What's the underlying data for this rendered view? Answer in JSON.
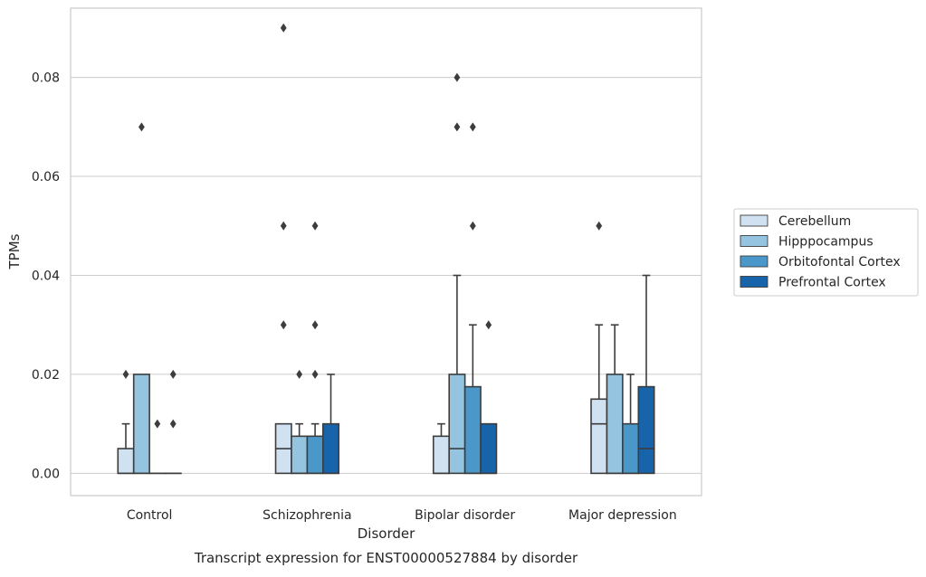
{
  "chart_data": {
    "type": "box",
    "title": "",
    "caption": "Transcript expression for ENST00000527884 by disorder",
    "xlabel": "Disorder",
    "ylabel": "TPMs",
    "ylim": [
      -0.0045,
      0.094
    ],
    "yticks": [
      0.0,
      0.02,
      0.04,
      0.06,
      0.08
    ],
    "ytick_labels": [
      "0.00",
      "0.02",
      "0.04",
      "0.06",
      "0.08"
    ],
    "grid": "horizontal",
    "legend_position": "right",
    "categories": [
      "Control",
      "Schizophrenia",
      "Bipolar disorder",
      "Major depression"
    ],
    "series": [
      {
        "name": "Cerebellum",
        "color": "#d0e1f2",
        "boxes": [
          {
            "q1": 0.0,
            "median": 0.0,
            "q3": 0.005,
            "whisker_low": 0.0,
            "whisker_high": 0.01,
            "outliers": [
              0.02
            ]
          },
          {
            "q1": 0.0,
            "median": 0.005,
            "q3": 0.01,
            "whisker_low": 0.0,
            "whisker_high": 0.01,
            "outliers": [
              0.03,
              0.05,
              0.09
            ]
          },
          {
            "q1": 0.0,
            "median": 0.0,
            "q3": 0.0075,
            "whisker_low": 0.0,
            "whisker_high": 0.01,
            "outliers": []
          },
          {
            "q1": 0.0,
            "median": 0.01,
            "q3": 0.015,
            "whisker_low": 0.0,
            "whisker_high": 0.03,
            "outliers": [
              0.05
            ]
          }
        ]
      },
      {
        "name": "Hipppocampus",
        "color": "#94c4df",
        "boxes": [
          {
            "q1": 0.0,
            "median": 0.0,
            "q3": 0.02,
            "whisker_low": 0.0,
            "whisker_high": 0.02,
            "outliers": [
              0.07
            ]
          },
          {
            "q1": 0.0,
            "median": 0.0,
            "q3": 0.0075,
            "whisker_low": 0.0,
            "whisker_high": 0.01,
            "outliers": [
              0.02
            ]
          },
          {
            "q1": 0.0,
            "median": 0.005,
            "q3": 0.02,
            "whisker_low": 0.0,
            "whisker_high": 0.04,
            "outliers": [
              0.07,
              0.08
            ]
          },
          {
            "q1": 0.0,
            "median": 0.0,
            "q3": 0.02,
            "whisker_low": 0.0,
            "whisker_high": 0.03,
            "outliers": []
          }
        ]
      },
      {
        "name": "Orbitofontal Cortex",
        "color": "#4a98c9",
        "boxes": [
          {
            "q1": 0.0,
            "median": 0.0,
            "q3": 0.0,
            "whisker_low": 0.0,
            "whisker_high": 0.0,
            "outliers": [
              0.01
            ]
          },
          {
            "q1": 0.0,
            "median": 0.0,
            "q3": 0.0075,
            "whisker_low": 0.0,
            "whisker_high": 0.01,
            "outliers": [
              0.02,
              0.03,
              0.05
            ]
          },
          {
            "q1": 0.0,
            "median": 0.0,
            "q3": 0.0175,
            "whisker_low": 0.0,
            "whisker_high": 0.03,
            "outliers": [
              0.05,
              0.07
            ]
          },
          {
            "q1": 0.0,
            "median": 0.0,
            "q3": 0.01,
            "whisker_low": 0.0,
            "whisker_high": 0.02,
            "outliers": []
          }
        ]
      },
      {
        "name": "Prefrontal Cortex",
        "color": "#1764ab",
        "boxes": [
          {
            "q1": 0.0,
            "median": 0.0,
            "q3": 0.0,
            "whisker_low": 0.0,
            "whisker_high": 0.0,
            "outliers": [
              0.01,
              0.02
            ]
          },
          {
            "q1": 0.0,
            "median": 0.0,
            "q3": 0.01,
            "whisker_low": 0.0,
            "whisker_high": 0.02,
            "outliers": []
          },
          {
            "q1": 0.0,
            "median": 0.0,
            "q3": 0.01,
            "whisker_low": 0.0,
            "whisker_high": 0.01,
            "outliers": [
              0.03
            ]
          },
          {
            "q1": 0.0,
            "median": 0.005,
            "q3": 0.0175,
            "whisker_low": 0.0,
            "whisker_high": 0.04,
            "outliers": []
          }
        ]
      }
    ]
  }
}
